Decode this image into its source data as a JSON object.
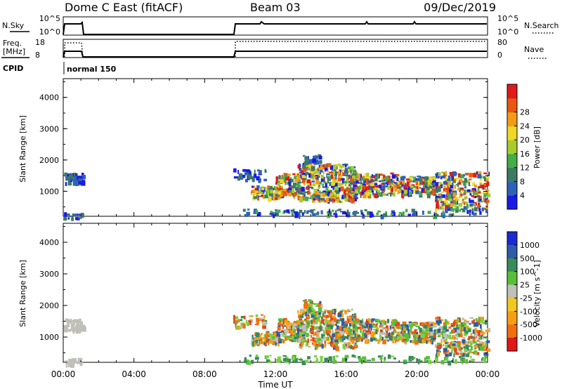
{
  "header": {
    "title": "Dome C East (fitACF)",
    "beam": "Beam 03",
    "date": "09/Dec/2019"
  },
  "noise_panel": {
    "left_label": "N.Sky",
    "left_ticks": [
      "10^5",
      "10^0"
    ],
    "right_label": "N.Search",
    "right_ticks": [
      "10^5",
      "10^0"
    ]
  },
  "freq_panel": {
    "left_label_1": "Freq.",
    "left_label_2": "[MHz]",
    "left_ticks": [
      "18",
      "8"
    ],
    "right_label": "Nave",
    "right_ticks": [
      "80",
      "0"
    ]
  },
  "cpid": {
    "label": "CPID",
    "value": "normal 150"
  },
  "chart_data": [
    {
      "type": "heatmap",
      "name": "power",
      "ylabel": "Slant Range [km]",
      "y_ticks": [
        "1000",
        "2000",
        "3000",
        "4000"
      ],
      "ylim": [
        200,
        4600
      ],
      "xlim": [
        0,
        24
      ],
      "colorbar_label": "Power [dB]",
      "colorbar_ticks": [
        "4",
        "8",
        "12",
        "16",
        "20",
        "24",
        "28"
      ],
      "colorbar_colors": [
        "#1a1ae6",
        "#2d62b8",
        "#3c7a64",
        "#44ad48",
        "#a8cc2c",
        "#f0d826",
        "#f59a14",
        "#e85812",
        "#e01a1a"
      ]
    },
    {
      "type": "heatmap",
      "name": "velocity",
      "ylabel": "Slant Range [km]",
      "y_ticks": [
        "1000",
        "2000",
        "3000",
        "4000"
      ],
      "ylim": [
        200,
        4600
      ],
      "xlim": [
        0,
        24
      ],
      "colorbar_label": "Velocity [m s^-1]",
      "colorbar_ticks": [
        "1000",
        "500",
        "100",
        "25",
        "-25",
        "-100",
        "-500",
        "-1000"
      ],
      "colorbar_colors": [
        "#1a2ad0",
        "#2e5aa8",
        "#3a8a5c",
        "#58c038",
        "#c0c0b8",
        "#f2c81e",
        "#f5a014",
        "#f07010",
        "#e01818"
      ]
    }
  ],
  "x_axis": {
    "ticks": [
      "00:00",
      "04:00",
      "08:00",
      "12:00",
      "16:00",
      "20:00",
      "00:00"
    ],
    "label": "Time UT"
  }
}
